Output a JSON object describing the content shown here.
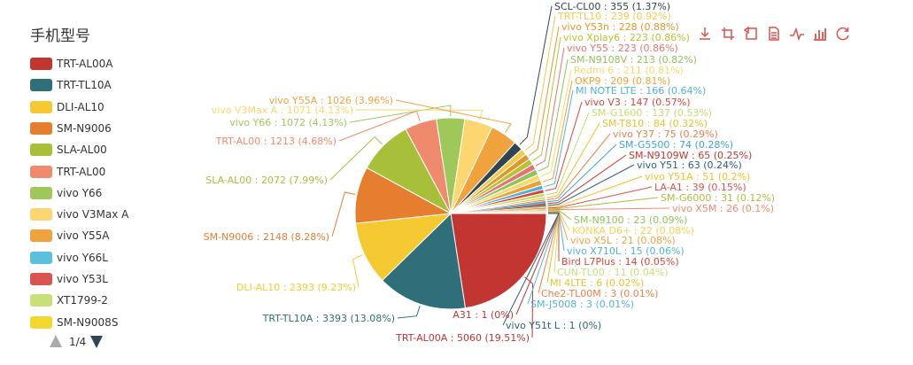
{
  "chart_data": {
    "type": "pie",
    "title": "手机型号",
    "legend_position": "left",
    "slices": [
      {
        "name": "TRT-AL00A",
        "value": 5060,
        "percent": "19.51%",
        "color": "#c23531"
      },
      {
        "name": "TRT-TL10A",
        "value": 3393,
        "percent": "13.08%",
        "color": "#2f6f7a"
      },
      {
        "name": "DLI-AL10",
        "value": 2393,
        "percent": "9.23%",
        "color": "#f5c932"
      },
      {
        "name": "SM-N9006",
        "value": 2148,
        "percent": "8.28%",
        "color": "#e67e30"
      },
      {
        "name": "SLA-AL00",
        "value": 2072,
        "percent": "7.99%",
        "color": "#a8bf3a"
      },
      {
        "name": "TRT-AL00",
        "value": 1213,
        "percent": "4.68%",
        "color": "#f08a6c"
      },
      {
        "name": "vivo Y66",
        "value": 1072,
        "percent": "4.13%",
        "color": "#9fc85a"
      },
      {
        "name": "vivo V3Max A",
        "value": 1071,
        "percent": "4.13%",
        "color": "#fcd670"
      },
      {
        "name": "vivo Y55A",
        "value": 1026,
        "percent": "3.96%",
        "color": "#f0a23d"
      },
      {
        "name": "vivo Y66L",
        "value": 0,
        "percent": "",
        "color": "#5bc0de"
      },
      {
        "name": "vivo Y53L",
        "value": 0,
        "percent": "",
        "color": "#d9534f"
      },
      {
        "name": "XT1799-2",
        "value": 0,
        "percent": "",
        "color": "#c8e07a"
      },
      {
        "name": "SM-N9008S",
        "value": 0,
        "percent": "",
        "color": "#f2d82c"
      },
      {
        "name": "SCL-CL00",
        "value": 355,
        "percent": "1.37%",
        "color": "#2f4554"
      },
      {
        "name": "TRT-TL10",
        "value": 239,
        "percent": "0.92%",
        "color": "#f2c94c"
      },
      {
        "name": "vivo Y53n",
        "value": 228,
        "percent": "0.88%",
        "color": "#e0962a"
      },
      {
        "name": "vivo Xplay6",
        "value": 223,
        "percent": "0.86%",
        "color": "#b5c334"
      },
      {
        "name": "vivo Y55",
        "value": 223,
        "percent": "0.86%",
        "color": "#e57373"
      },
      {
        "name": "SM-N9108V",
        "value": 213,
        "percent": "0.82%",
        "color": "#91c25a"
      },
      {
        "name": "Redmi 6",
        "value": 211,
        "percent": "0.81%",
        "color": "#f7d86a"
      },
      {
        "name": "OKP9",
        "value": 209,
        "percent": "0.81%",
        "color": "#f0a030"
      },
      {
        "name": "MI NOTE LTE",
        "value": 166,
        "percent": "0.64%",
        "color": "#4fb3d9"
      },
      {
        "name": "vivo V3",
        "value": 147,
        "percent": "0.57%",
        "color": "#d8453a"
      },
      {
        "name": "SM-G1600",
        "value": 137,
        "percent": "0.53%",
        "color": "#c3dc6c"
      },
      {
        "name": "SM-T810",
        "value": 84,
        "percent": "0.32%",
        "color": "#e8c12a"
      },
      {
        "name": "vivo Y37",
        "value": 75,
        "percent": "0.29%",
        "color": "#e8804a"
      },
      {
        "name": "SM-G5500",
        "value": 74,
        "percent": "0.28%",
        "color": "#3aa6c8"
      },
      {
        "name": "SM-N9109W",
        "value": 65,
        "percent": "0.25%",
        "color": "#c23531"
      },
      {
        "name": "vivo Y51",
        "value": 63,
        "percent": "0.24%",
        "color": "#2f5f7a"
      },
      {
        "name": "vivo Y51A",
        "value": 51,
        "percent": "0.2%",
        "color": "#f2c01e"
      },
      {
        "name": "LA-A1",
        "value": 39,
        "percent": "0.15%",
        "color": "#d9534f"
      },
      {
        "name": "SM-G6000",
        "value": 31,
        "percent": "0.12%",
        "color": "#a8bf3a"
      },
      {
        "name": "vivo X5M",
        "value": 26,
        "percent": "0.1%",
        "color": "#f08a6c"
      },
      {
        "name": "SM-N9100",
        "value": 23,
        "percent": "0.09%",
        "color": "#91c25a"
      },
      {
        "name": "KONKA D6+",
        "value": 22,
        "percent": "0.08%",
        "color": "#f7d050"
      },
      {
        "name": "vivo X5L",
        "value": 21,
        "percent": "0.08%",
        "color": "#f0a23d"
      },
      {
        "name": "vivo X710L",
        "value": 15,
        "percent": "0.06%",
        "color": "#4fb3d9"
      },
      {
        "name": "Bird L7Plus",
        "value": 14,
        "percent": "0.05%",
        "color": "#d8453a"
      },
      {
        "name": "CUN-TL00",
        "value": 11,
        "percent": "0.04%",
        "color": "#c8e07a"
      },
      {
        "name": "MI 4LTE",
        "value": 6,
        "percent": "0.02%",
        "color": "#e8c12a"
      },
      {
        "name": "Che2-TL00M",
        "value": 3,
        "percent": "0.01%",
        "color": "#e8804a"
      },
      {
        "name": "SM-J5008",
        "value": 3,
        "percent": "0.01%",
        "color": "#4fb3d9"
      },
      {
        "name": "A31",
        "value": 1,
        "percent": "0%",
        "color": "#c23531"
      },
      {
        "name": "vivo Y51t L",
        "value": 1,
        "percent": "0%",
        "color": "#2f5f7a"
      }
    ],
    "legend": {
      "items": [
        "TRT-AL00A",
        "TRT-TL10A",
        "DLI-AL10",
        "SM-N9006",
        "SLA-AL00",
        "TRT-AL00",
        "vivo Y66",
        "vivo V3Max A",
        "vivo Y55A",
        "vivo Y66L",
        "vivo Y53L",
        "XT1799-2",
        "SM-N9008S"
      ],
      "page": "1/4"
    }
  },
  "toolbox": {
    "accent_color": "#d9534f",
    "icons": [
      "download-icon",
      "zoom-icon",
      "zoom-reset-icon",
      "data-view-icon",
      "line-chart-icon",
      "bar-chart-icon",
      "restore-icon"
    ]
  }
}
